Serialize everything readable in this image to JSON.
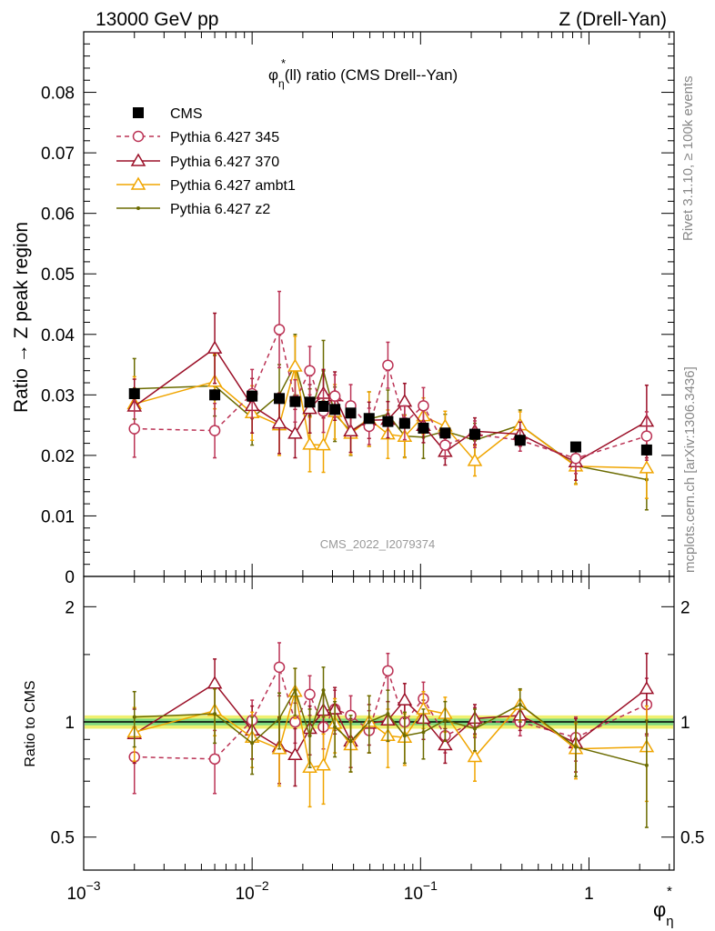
{
  "header": {
    "left": "13000 GeV pp",
    "right": "Z (Drell-Yan)"
  },
  "side_labels": {
    "rivet": "Rivet 3.1.10, ≥ 100k events",
    "mcplots": "mcplots.cern.ch [arXiv:1306.3436]"
  },
  "watermark": "CMS_2022_I2079374",
  "colors": {
    "cms": "#000000",
    "p345": "#bb3355",
    "p370": "#9b1028",
    "ambt1": "#f0a500",
    "z2": "#6b6b00",
    "band_green": "#7ed87e",
    "band_yellow": "#f0f070"
  },
  "chart_data": [
    {
      "type": "scatter",
      "title": "φ*η(ll) ratio (CMS Drell--Yan)",
      "title_parts": {
        "phi": "φ",
        "star": "*",
        "eta": "η",
        "rest": "(ll) ratio (CMS Drell--Yan)"
      },
      "xlabel": "φ*η",
      "xlabel_parts": {
        "phi": "φ",
        "star": "*",
        "eta": "η"
      },
      "ylabel": "Ratio → Z peak region",
      "xscale": "log",
      "xlim": [
        0.001,
        3.2
      ],
      "ylim": [
        0,
        0.09
      ],
      "legend_position": "top-left",
      "x_ticks": [
        {
          "value": 0.001,
          "base": "10",
          "exp": "−3"
        },
        {
          "value": 0.01,
          "base": "10",
          "exp": "−2"
        },
        {
          "value": 0.1,
          "base": "10",
          "exp": "−1"
        },
        {
          "value": 1,
          "base": "1",
          "exp": ""
        }
      ],
      "y_ticks": [
        {
          "value": 0,
          "label": "0"
        },
        {
          "value": 0.01,
          "label": "0.01"
        },
        {
          "value": 0.02,
          "label": "0.02"
        },
        {
          "value": 0.03,
          "label": "0.03"
        },
        {
          "value": 0.04,
          "label": "0.04"
        },
        {
          "value": 0.05,
          "label": "0.05"
        },
        {
          "value": 0.06,
          "label": "0.06"
        },
        {
          "value": 0.07,
          "label": "0.07"
        },
        {
          "value": 0.08,
          "label": "0.08"
        }
      ],
      "x": [
        0.002,
        0.006,
        0.01,
        0.0145,
        0.018,
        0.022,
        0.0265,
        0.031,
        0.0385,
        0.0495,
        0.064,
        0.0805,
        0.104,
        0.14,
        0.21,
        0.39,
        0.835,
        2.2
      ],
      "series": [
        {
          "name": "CMS",
          "marker": "square",
          "values": [
            0.0302,
            0.03,
            0.0298,
            0.0294,
            0.0289,
            0.0288,
            0.0281,
            0.0276,
            0.027,
            0.0261,
            0.0256,
            0.0253,
            0.0245,
            0.0237,
            0.0235,
            0.0225,
            0.0214,
            0.0209
          ],
          "errors": [
            0.0008,
            0.0008,
            0.0008,
            0.0007,
            0.0007,
            0.0007,
            0.0007,
            0.0007,
            0.0007,
            0.0006,
            0.0006,
            0.0006,
            0.0006,
            0.0006,
            0.0006,
            0.0006,
            0.0006,
            0.0008
          ]
        },
        {
          "name": "Pythia 6.427 345",
          "marker": "circle-open",
          "dashed": true,
          "values": [
            0.0244,
            0.0241,
            0.0302,
            0.0408,
            0.029,
            0.034,
            0.0273,
            0.0298,
            0.0282,
            0.0248,
            0.0349,
            0.0254,
            0.0282,
            0.0217,
            0.0235,
            0.0225,
            0.0195,
            0.0232
          ],
          "errors": [
            0.0047,
            0.0045,
            0.004,
            0.0063,
            0.0035,
            0.004,
            0.0035,
            0.0035,
            0.0035,
            0.003,
            0.0038,
            0.0028,
            0.003,
            0.0022,
            0.0022,
            0.0018,
            0.0025,
            0.004
          ]
        },
        {
          "name": "Pythia 6.427 370",
          "marker": "triangle-open",
          "values": [
            0.0281,
            0.0377,
            0.0282,
            0.0253,
            0.0236,
            0.0277,
            0.0302,
            0.0298,
            0.024,
            0.0258,
            0.0259,
            0.0289,
            0.0249,
            0.0206,
            0.024,
            0.0235,
            0.0189,
            0.0256
          ],
          "errors": [
            0.0045,
            0.0058,
            0.0045,
            0.005,
            0.004,
            0.004,
            0.004,
            0.004,
            0.0035,
            0.003,
            0.003,
            0.003,
            0.0028,
            0.0022,
            0.0022,
            0.002,
            0.003,
            0.006
          ]
        },
        {
          "name": "Pythia 6.427 ambt1",
          "marker": "triangle-open",
          "values": [
            0.0285,
            0.0322,
            0.027,
            0.025,
            0.0347,
            0.0218,
            0.0217,
            0.0272,
            0.0236,
            0.026,
            0.0235,
            0.0231,
            0.0265,
            0.0248,
            0.0191,
            0.025,
            0.0182,
            0.0179
          ],
          "errors": [
            0.0045,
            0.0045,
            0.0045,
            0.005,
            0.005,
            0.0045,
            0.0045,
            0.0045,
            0.0035,
            0.0045,
            0.004,
            0.0035,
            0.003,
            0.0025,
            0.0025,
            0.0022,
            0.003,
            0.005
          ]
        },
        {
          "name": "Pythia 6.427 z2",
          "marker": "dot",
          "values": [
            0.031,
            0.0315,
            0.0262,
            0.03,
            0.035,
            0.0265,
            0.034,
            0.0268,
            0.024,
            0.026,
            0.0268,
            0.0232,
            0.023,
            0.024,
            0.0225,
            0.025,
            0.0183,
            0.016
          ],
          "errors": [
            0.005,
            0.005,
            0.0045,
            0.005,
            0.005,
            0.0045,
            0.005,
            0.0045,
            0.004,
            0.0045,
            0.004,
            0.0035,
            0.0035,
            0.0028,
            0.0028,
            0.0025,
            0.003,
            0.005
          ]
        }
      ]
    },
    {
      "type": "scatter",
      "ylabel": "Ratio to CMS",
      "xscale": "log",
      "xlim": [
        0.001,
        3.2
      ],
      "ylim": [
        0.41,
        2.4
      ],
      "yscale": "log",
      "y_ticks": [
        {
          "value": 0.5,
          "label": "0.5"
        },
        {
          "value": 1,
          "label": "1"
        },
        {
          "value": 2,
          "label": "2"
        }
      ],
      "x": [
        0.002,
        0.006,
        0.01,
        0.0145,
        0.018,
        0.022,
        0.0265,
        0.031,
        0.0385,
        0.0495,
        0.064,
        0.0805,
        0.104,
        0.14,
        0.21,
        0.39,
        0.835,
        2.2
      ],
      "reference_band": {
        "inner": 0.02,
        "outer": 0.04
      },
      "series": [
        {
          "name": "Pythia 6.427 345",
          "values": [
            0.81,
            0.8,
            1.01,
            1.39,
            1.0,
            1.18,
            0.97,
            1.08,
            1.04,
            0.95,
            1.36,
            1.0,
            1.15,
            0.92,
            1.0,
            1.0,
            0.91,
            1.11
          ],
          "errors": [
            0.16,
            0.15,
            0.13,
            0.22,
            0.12,
            0.14,
            0.12,
            0.13,
            0.13,
            0.12,
            0.15,
            0.11,
            0.12,
            0.09,
            0.09,
            0.08,
            0.12,
            0.19
          ]
        },
        {
          "name": "Pythia 6.427 370",
          "values": [
            0.93,
            1.26,
            0.95,
            0.86,
            0.82,
            0.96,
            1.07,
            1.08,
            0.89,
            0.99,
            1.01,
            1.14,
            1.02,
            0.87,
            1.02,
            1.04,
            0.88,
            1.22
          ],
          "errors": [
            0.15,
            0.2,
            0.15,
            0.17,
            0.14,
            0.14,
            0.14,
            0.15,
            0.13,
            0.12,
            0.12,
            0.12,
            0.12,
            0.09,
            0.09,
            0.09,
            0.14,
            0.29
          ]
        },
        {
          "name": "Pythia 6.427 ambt1",
          "values": [
            0.94,
            1.07,
            0.91,
            0.85,
            1.2,
            0.76,
            0.77,
            0.99,
            0.87,
            1.0,
            0.92,
            0.91,
            1.08,
            1.05,
            0.81,
            1.11,
            0.85,
            0.86
          ],
          "errors": [
            0.15,
            0.15,
            0.15,
            0.17,
            0.18,
            0.16,
            0.16,
            0.16,
            0.13,
            0.17,
            0.16,
            0.14,
            0.12,
            0.11,
            0.11,
            0.1,
            0.14,
            0.24
          ]
        },
        {
          "name": "Pythia 6.427 z2",
          "values": [
            1.03,
            1.05,
            0.88,
            1.02,
            1.21,
            0.92,
            1.21,
            0.97,
            0.89,
            1.0,
            1.05,
            0.92,
            0.94,
            1.01,
            0.96,
            1.11,
            0.86,
            0.77
          ],
          "errors": [
            0.17,
            0.17,
            0.15,
            0.17,
            0.17,
            0.16,
            0.18,
            0.16,
            0.15,
            0.17,
            0.16,
            0.14,
            0.14,
            0.12,
            0.12,
            0.11,
            0.14,
            0.24
          ]
        }
      ]
    }
  ]
}
